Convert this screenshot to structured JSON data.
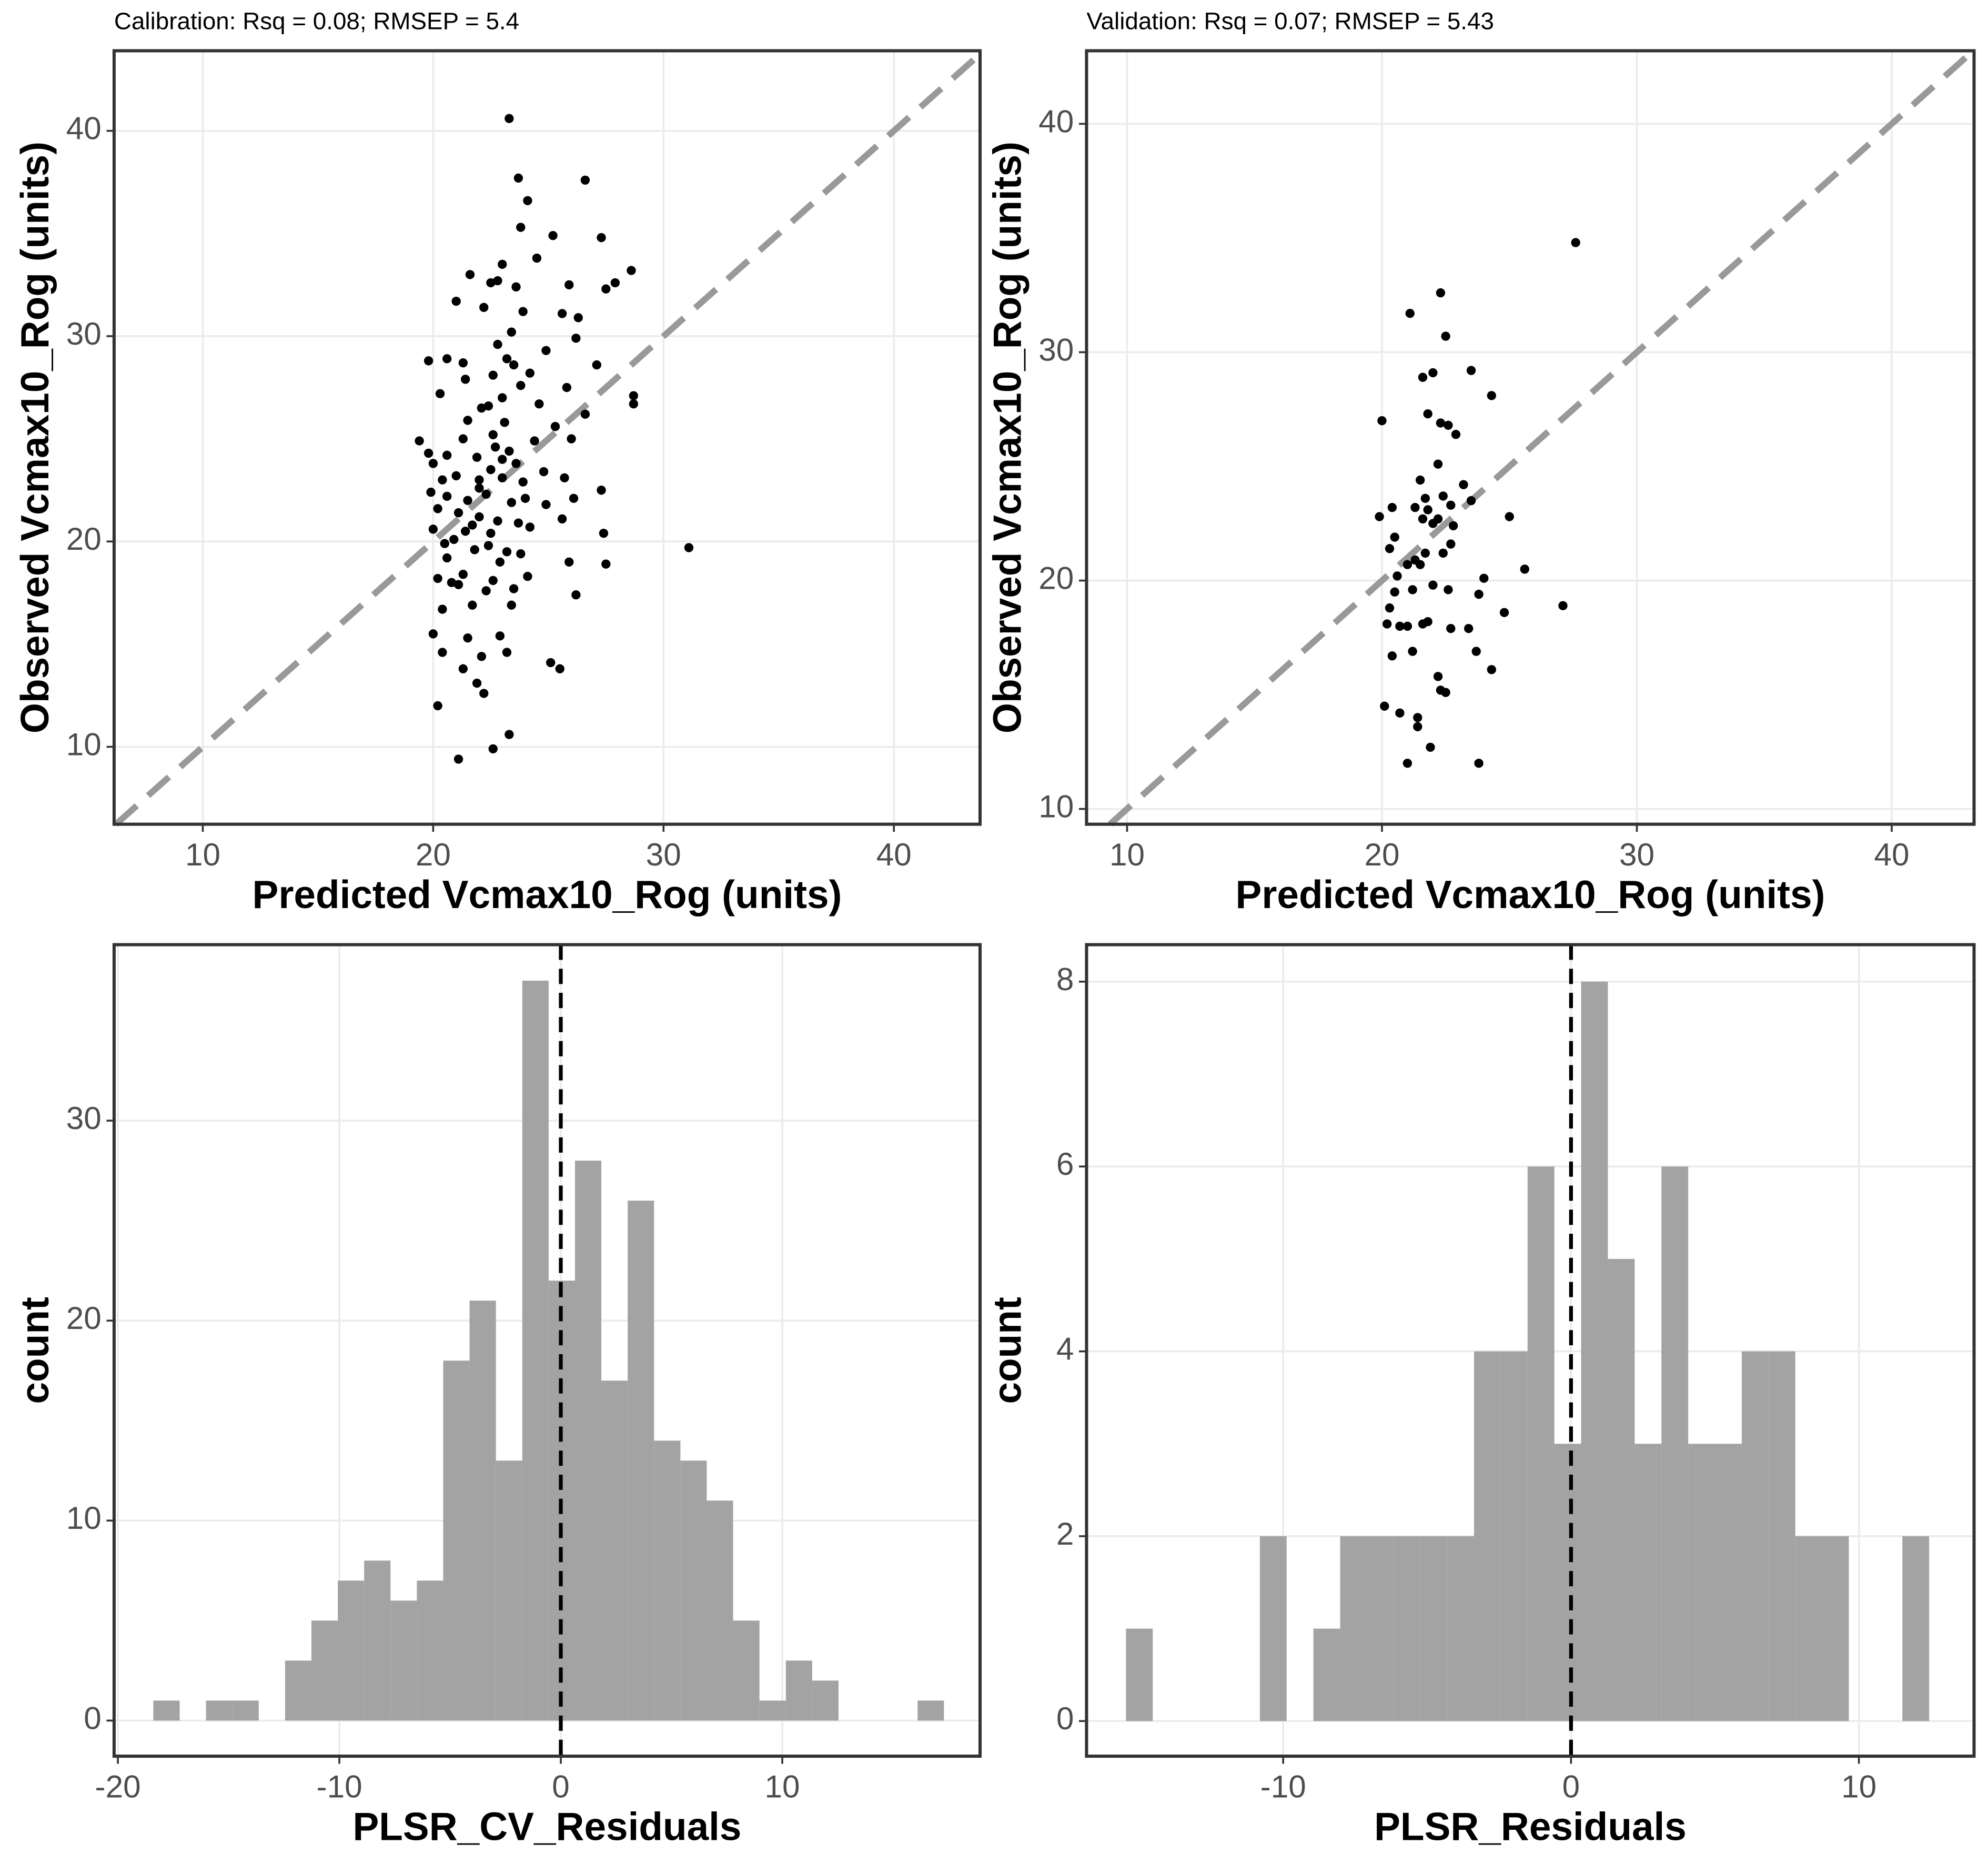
{
  "chart_data": [
    {
      "type": "scatter",
      "title": "Calibration: Rsq = 0.08; RMSEP = 5.4",
      "xlabel": "Predicted Vcmax10_Rog (units)",
      "ylabel": "Observed Vcmax10_Rog (units)",
      "x": [
        23.3,
        23.7,
        26.6,
        24.1,
        23.8,
        25.2,
        27.3,
        23.0,
        24.5,
        21.6,
        28.6,
        27.5,
        27.9,
        22.5,
        22.8,
        23.6,
        25.9,
        21.0,
        22.2,
        23.9,
        26.3,
        25.6,
        23.4,
        26.2,
        24.9,
        22.8,
        23.2,
        20.6,
        19.8,
        21.3,
        23.5,
        27.1,
        24.2,
        21.4,
        22.6,
        23.8,
        25.8,
        20.3,
        23.0,
        28.7,
        28.7,
        22.1,
        22.4,
        24.6,
        26.6,
        21.5,
        23.1,
        25.3,
        26.0,
        21.3,
        19.4,
        22.7,
        23.3,
        19.8,
        20.6,
        21.9,
        23.0,
        23.6,
        22.5,
        24.8,
        20.0,
        20.4,
        21.0,
        22.0,
        23.9,
        25.7,
        27.3,
        19.9,
        20.6,
        21.5,
        22.3,
        23.4,
        24.9,
        26.1,
        20.2,
        21.1,
        22.0,
        22.8,
        23.7,
        25.6,
        20.0,
        21.4,
        22.5,
        24.2,
        27.4,
        20.5,
        21.8,
        22.4,
        23.2,
        31.1,
        20.6,
        22.9,
        25.9,
        27.5,
        20.2,
        21.3,
        22.6,
        24.1,
        21.1,
        22.3,
        23.5,
        26.2,
        20.4,
        21.7,
        23.4,
        20.0,
        21.5,
        22.9,
        20.4,
        22.1,
        23.2,
        25.1,
        25.5,
        21.3,
        21.9,
        22.2,
        20.2,
        23.3,
        22.6,
        21.1,
        20.9,
        22.0,
        23.0,
        24.4,
        22.6,
        24.0,
        21.7,
        20.8,
        23.8
      ],
      "values": [
        40.6,
        37.7,
        37.6,
        36.6,
        35.3,
        34.9,
        34.8,
        33.5,
        33.8,
        33.0,
        33.2,
        32.3,
        32.6,
        32.6,
        32.7,
        32.4,
        32.5,
        31.7,
        31.4,
        31.2,
        30.9,
        31.1,
        30.2,
        29.9,
        29.3,
        29.6,
        28.9,
        28.9,
        28.8,
        28.7,
        28.6,
        28.6,
        28.2,
        27.9,
        28.1,
        27.6,
        27.5,
        27.2,
        27.0,
        27.1,
        26.7,
        26.5,
        26.6,
        26.7,
        26.2,
        25.9,
        25.8,
        25.6,
        25.0,
        25.0,
        24.9,
        24.6,
        24.4,
        24.3,
        24.2,
        24.1,
        24.0,
        23.8,
        23.5,
        23.4,
        23.8,
        23.0,
        23.2,
        23.0,
        22.9,
        23.1,
        22.5,
        22.4,
        22.2,
        22.0,
        22.3,
        21.9,
        21.8,
        22.1,
        21.6,
        21.4,
        21.2,
        21.0,
        20.9,
        21.1,
        20.6,
        20.5,
        20.4,
        20.7,
        20.4,
        19.9,
        19.6,
        19.8,
        19.5,
        19.7,
        19.2,
        19.0,
        19.0,
        18.9,
        18.2,
        18.4,
        18.1,
        18.3,
        17.9,
        17.6,
        17.7,
        17.4,
        16.7,
        16.9,
        16.9,
        15.5,
        15.3,
        15.4,
        14.6,
        14.4,
        14.6,
        14.1,
        13.8,
        13.8,
        13.1,
        12.6,
        12.0,
        10.6,
        9.9,
        9.4,
        20.1,
        22.6,
        23.1,
        24.9,
        25.2,
        22.1,
        20.8,
        18.0,
        19.4
      ],
      "color": "#000000",
      "identity_line": true,
      "identity_line_color": "#999999",
      "xlim": [
        6.15,
        43.74
      ],
      "ylim": [
        6.23,
        43.9
      ],
      "xticks": [
        10,
        20,
        30,
        40
      ],
      "yticks": [
        10,
        20,
        30,
        40
      ],
      "grid": true
    },
    {
      "type": "scatter",
      "title": "Validation: Rsq = 0.07; RMSEP = 5.43",
      "xlabel": "Predicted Vcmax10_Rog (units)",
      "ylabel": "Observed Vcmax10_Rog (units)",
      "x": [
        27.6,
        21.1,
        22.3,
        22.5,
        22.0,
        21.6,
        23.5,
        24.3,
        20.0,
        21.8,
        22.3,
        22.6,
        22.9,
        22.2,
        21.5,
        23.2,
        20.4,
        21.3,
        21.7,
        22.4,
        21.8,
        22.7,
        23.5,
        19.9,
        21.6,
        22.2,
        25.0,
        22.0,
        22.8,
        20.5,
        20.3,
        22.7,
        21.7,
        21.3,
        21.0,
        21.5,
        22.4,
        25.6,
        24.0,
        20.6,
        21.2,
        20.5,
        22.0,
        22.6,
        23.8,
        20.3,
        27.1,
        24.8,
        20.2,
        20.7,
        21.0,
        21.6,
        21.8,
        22.7,
        23.4,
        20.4,
        21.2,
        23.7,
        24.3,
        22.2,
        22.3,
        22.5,
        20.1,
        20.7,
        21.4,
        21.4,
        21.9,
        21.0,
        23.8
      ],
      "values": [
        34.8,
        31.7,
        32.6,
        30.7,
        29.1,
        28.9,
        29.2,
        28.1,
        27.0,
        27.3,
        26.9,
        26.8,
        26.4,
        25.1,
        24.4,
        24.2,
        23.2,
        23.2,
        23.6,
        23.7,
        23.1,
        23.3,
        23.5,
        22.8,
        22.7,
        22.7,
        22.8,
        22.5,
        22.4,
        21.9,
        21.4,
        21.6,
        21.2,
        20.9,
        20.7,
        20.7,
        21.2,
        20.5,
        20.1,
        20.2,
        19.6,
        19.5,
        19.8,
        19.6,
        19.4,
        18.8,
        18.9,
        18.6,
        18.1,
        18.0,
        18.0,
        18.1,
        18.2,
        17.9,
        17.9,
        16.7,
        16.9,
        16.9,
        16.1,
        15.8,
        15.2,
        15.1,
        14.5,
        14.2,
        14.0,
        13.6,
        12.7,
        12.0,
        12.0
      ],
      "color": "#000000",
      "identity_line": true,
      "identity_line_color": "#999999",
      "xlim": [
        8.41,
        43.23
      ],
      "ylim": [
        9.33,
        43.2
      ],
      "xticks": [
        10,
        20,
        30,
        40
      ],
      "yticks": [
        10,
        20,
        30,
        40
      ],
      "grid": true
    },
    {
      "type": "histogram",
      "xlabel": "PLSR_CV_Residuals",
      "ylabel": "count",
      "bins": [
        -18.4,
        -17.21,
        -16.02,
        -14.83,
        -13.64,
        -12.45,
        -11.26,
        -10.07,
        -8.88,
        -7.69,
        -6.5,
        -5.31,
        -4.12,
        -2.93,
        -1.74,
        -0.55,
        0.64,
        1.83,
        3.02,
        4.21,
        5.4,
        6.59,
        7.78,
        8.97,
        10.16,
        11.35,
        12.54,
        13.73,
        14.92,
        16.11,
        17.3
      ],
      "values": [
        1,
        0,
        1,
        1,
        0,
        3,
        5,
        7,
        8,
        6,
        7,
        18,
        21,
        13,
        37,
        22,
        28,
        17,
        26,
        14,
        13,
        11,
        5,
        1,
        3,
        2,
        0,
        0,
        0,
        1
      ],
      "color": "#a3a3a3",
      "vline": 0,
      "vline_color": "#000000",
      "xlim": [
        -20.17,
        18.93
      ],
      "ylim": [
        -1.78,
        38.8
      ],
      "xticks": [
        -20,
        -10,
        0,
        10
      ],
      "yticks": [
        0,
        10,
        20,
        30
      ],
      "grid": true
    },
    {
      "type": "histogram",
      "xlabel": "PLSR_Residuals",
      "ylabel": "count",
      "bins": [
        -15.46,
        -14.53,
        -13.6,
        -12.67,
        -11.74,
        -10.81,
        -9.88,
        -8.95,
        -8.02,
        -7.09,
        -6.16,
        -5.23,
        -4.3,
        -3.37,
        -2.44,
        -1.51,
        -0.58,
        0.35,
        1.28,
        2.21,
        3.14,
        4.07,
        5.0,
        5.93,
        6.86,
        7.79,
        8.72,
        9.65,
        10.58,
        11.51,
        12.44
      ],
      "values": [
        1,
        0,
        0,
        0,
        0,
        2,
        0,
        1,
        2,
        2,
        2,
        2,
        2,
        4,
        4,
        6,
        3,
        8,
        5,
        3,
        6,
        3,
        3,
        4,
        4,
        2,
        2,
        0,
        0,
        2
      ],
      "color": "#a3a3a3",
      "vline": 0,
      "vline_color": "#000000",
      "xlim": [
        -16.83,
        14.0
      ],
      "ylim": [
        -0.38,
        8.4
      ],
      "xticks": [
        -10,
        0,
        10
      ],
      "yticks": [
        0,
        2,
        4,
        6,
        8
      ],
      "grid": true
    }
  ]
}
